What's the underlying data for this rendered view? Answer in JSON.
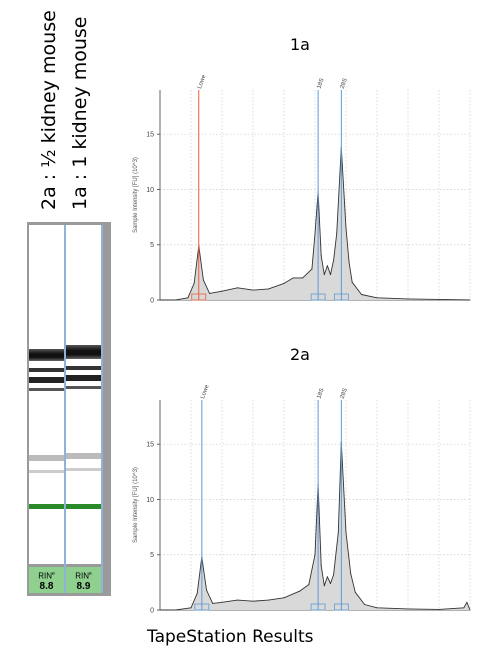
{
  "lanes": [
    {
      "label": "2a : ½ kidney mouse",
      "rin_label": "RIN",
      "rin_mark": "e",
      "rin_value": "8.8"
    },
    {
      "label": "1a : 1 kidney mouse",
      "rin_label": "RIN",
      "rin_mark": "e",
      "rin_value": "8.9"
    }
  ],
  "footer": "TapeStation Results",
  "colors": {
    "lower_marker": "#e8603c",
    "peak_marker": "#5b9bd5",
    "gel_band": "#1a1a1a",
    "lower_band": "#2a8a2a",
    "rin_box": "#8fd08f"
  },
  "chart_data": [
    {
      "type": "area",
      "title": "1a",
      "ylabel": "Sample Intensity [FU] (10^3)",
      "ylim": [
        0,
        19
      ],
      "yticks": [
        0,
        5,
        10,
        15
      ],
      "grid": true,
      "markers": [
        {
          "name": "Lower",
          "position": 0.125,
          "color": "#e8603c"
        },
        {
          "name": "18S",
          "position": 0.51,
          "color": "#5b9bd5"
        },
        {
          "name": "28S",
          "position": 0.585,
          "color": "#5b9bd5"
        }
      ],
      "x": [
        0,
        0.05,
        0.09,
        0.11,
        0.125,
        0.14,
        0.16,
        0.2,
        0.25,
        0.3,
        0.35,
        0.4,
        0.43,
        0.46,
        0.49,
        0.5,
        0.51,
        0.52,
        0.53,
        0.54,
        0.55,
        0.56,
        0.57,
        0.585,
        0.6,
        0.61,
        0.62,
        0.65,
        0.7,
        0.8,
        0.9,
        1.0
      ],
      "y": [
        0,
        0,
        0.2,
        1.5,
        4.9,
        1.8,
        0.6,
        0.8,
        1.1,
        0.9,
        1.0,
        1.5,
        2.0,
        2.0,
        2.8,
        6.0,
        9.8,
        4.0,
        2.3,
        3.1,
        2.3,
        3.6,
        6.0,
        13.8,
        6.5,
        3.4,
        1.6,
        0.5,
        0.2,
        0.1,
        0.05,
        0
      ]
    },
    {
      "type": "area",
      "title": "2a",
      "ylabel": "Sample Intensity [FU] (10^3)",
      "ylim": [
        0,
        19
      ],
      "yticks": [
        0,
        5,
        10,
        15
      ],
      "grid": true,
      "markers": [
        {
          "name": "Lower",
          "position": 0.135,
          "color": "#5b9bd5"
        },
        {
          "name": "18S",
          "position": 0.51,
          "color": "#5b9bd5"
        },
        {
          "name": "28S",
          "position": 0.585,
          "color": "#5b9bd5"
        }
      ],
      "x": [
        0,
        0.05,
        0.1,
        0.12,
        0.135,
        0.15,
        0.17,
        0.2,
        0.25,
        0.3,
        0.35,
        0.4,
        0.45,
        0.48,
        0.5,
        0.51,
        0.52,
        0.53,
        0.54,
        0.55,
        0.56,
        0.575,
        0.585,
        0.6,
        0.615,
        0.63,
        0.66,
        0.7,
        0.8,
        0.9,
        0.98,
        0.99,
        1.0
      ],
      "y": [
        0,
        0,
        0.2,
        1.5,
        4.8,
        1.8,
        0.6,
        0.7,
        0.9,
        0.8,
        0.9,
        1.1,
        1.7,
        2.3,
        5.0,
        11.4,
        4.0,
        2.2,
        3.0,
        2.4,
        3.2,
        7.0,
        15.2,
        7.0,
        3.3,
        1.6,
        0.5,
        0.2,
        0.1,
        0.05,
        0.2,
        0.7,
        0
      ]
    }
  ]
}
